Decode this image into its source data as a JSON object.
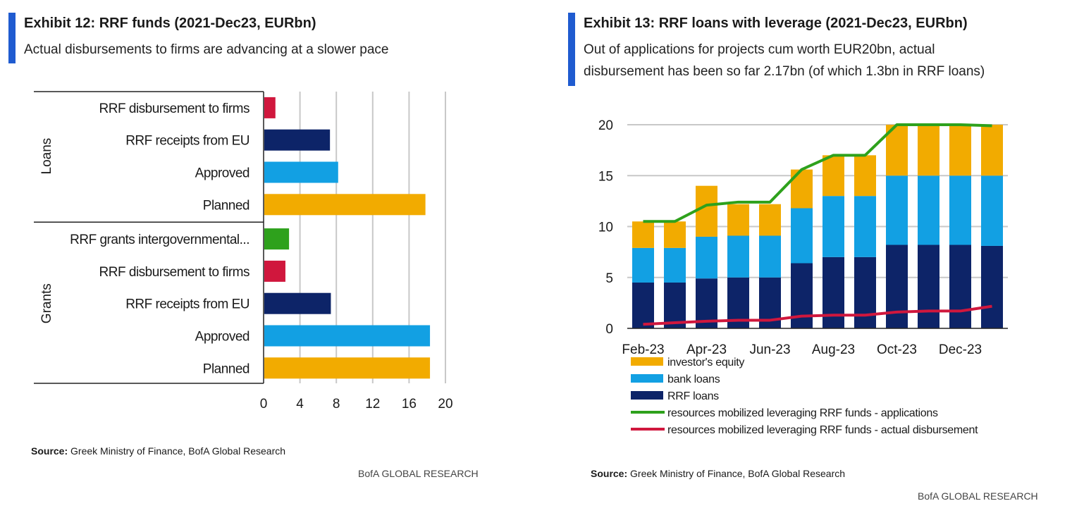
{
  "left": {
    "title": "Exhibit 12: RRF funds (2021-Dec23, EURbn)",
    "subtitle": "Actual disbursements to firms are advancing at a slower pace",
    "source_label": "Source:",
    "source_text": " Greek Ministry of Finance, BofA Global Research",
    "brand": "BofA GLOBAL RESEARCH"
  },
  "right": {
    "title": "Exhibit 13: RRF loans with leverage (2021-Dec23, EURbn)",
    "subtitle_line1": "Out of applications for projects cum worth EUR20bn, actual",
    "subtitle_line2": "disbursement has been so far 2.17bn (of which 1.3bn in RRF loans)",
    "source_label": "Source:",
    "source_text": " Greek Ministry of Finance, BofA Global Research",
    "brand": "BofA GLOBAL RESEARCH"
  },
  "colors": {
    "accent": "#1f5bd0",
    "red": "#d0173d",
    "navy": "#0d2468",
    "lightblue": "#12a0e3",
    "orange": "#f2ab00",
    "green": "#2ea11c",
    "grid": "#c8c8c8"
  },
  "chart_data": [
    {
      "type": "bar",
      "orientation": "horizontal",
      "title": "Exhibit 12: RRF funds (2021-Dec23, EURbn)",
      "xlim": [
        0,
        20
      ],
      "xticks": [
        "0",
        "4",
        "8",
        "12",
        "16",
        "20"
      ],
      "groups": [
        {
          "name": "Loans",
          "items": [
            {
              "label": "RRF disbursement to firms",
              "value": 1.3,
              "color": "red"
            },
            {
              "label": "RRF receipts from EU",
              "value": 7.3,
              "color": "navy"
            },
            {
              "label": "Approved",
              "value": 8.2,
              "color": "lightblue"
            },
            {
              "label": "Planned",
              "value": 17.8,
              "color": "orange"
            }
          ]
        },
        {
          "name": "Grants",
          "items": [
            {
              "label": "RRF grants intergovernmental...",
              "value": 2.8,
              "color": "green"
            },
            {
              "label": "RRF disbursement to firms",
              "value": 2.4,
              "color": "red"
            },
            {
              "label": "RRF receipts from EU",
              "value": 7.4,
              "color": "navy"
            },
            {
              "label": "Approved",
              "value": 18.3,
              "color": "lightblue"
            },
            {
              "label": "Planned",
              "value": 18.3,
              "color": "orange"
            }
          ]
        }
      ]
    },
    {
      "type": "stacked-bar-line",
      "title": "Exhibit 13: RRF loans with leverage (2021-Dec23, EURbn)",
      "ylim": [
        0,
        20
      ],
      "yticks": [
        "0",
        "5",
        "10",
        "15",
        "20"
      ],
      "categories": [
        "Feb-23",
        "Mar-23",
        "Apr-23",
        "May-23",
        "Jun-23",
        "Jul-23",
        "Aug-23",
        "Sep-23",
        "Oct-23",
        "Nov-23",
        "Dec-23",
        "Jan-24"
      ],
      "xtick_labels": [
        "Feb-23",
        "Apr-23",
        "Jun-23",
        "Aug-23",
        "Oct-23",
        "Dec-23"
      ],
      "xtick_indices": [
        0,
        2,
        4,
        6,
        8,
        10
      ],
      "stacks": [
        {
          "name": "RRF loans",
          "color": "navy",
          "values": [
            4.5,
            4.5,
            4.9,
            5.0,
            5.0,
            6.4,
            7.0,
            7.0,
            8.2,
            8.2,
            8.2,
            8.1
          ]
        },
        {
          "name": "bank loans",
          "color": "lightblue",
          "values": [
            3.4,
            3.4,
            4.1,
            4.1,
            4.1,
            5.4,
            6.0,
            6.0,
            6.8,
            6.8,
            6.8,
            6.9
          ]
        },
        {
          "name": "investor's equity",
          "color": "orange",
          "values": [
            2.6,
            2.6,
            5.0,
            3.1,
            3.1,
            3.8,
            4.0,
            4.0,
            5.0,
            5.0,
            5.0,
            5.0
          ]
        }
      ],
      "lines": [
        {
          "name": "resources mobilized leveraging RRF funds - applications",
          "color": "green",
          "values": [
            10.5,
            10.5,
            12.1,
            12.4,
            12.4,
            15.6,
            17.0,
            17.0,
            20.0,
            20.0,
            20.0,
            19.9
          ]
        },
        {
          "name": "resources mobilized leveraging RRF funds - actual disbursement",
          "color": "red",
          "values": [
            0.4,
            0.55,
            0.7,
            0.8,
            0.8,
            1.2,
            1.3,
            1.3,
            1.6,
            1.7,
            1.7,
            2.17
          ]
        }
      ],
      "legend": [
        {
          "label": "investor's equity",
          "kind": "box",
          "color": "orange"
        },
        {
          "label": "bank loans",
          "kind": "box",
          "color": "lightblue"
        },
        {
          "label": "RRF loans",
          "kind": "box",
          "color": "navy"
        },
        {
          "label": "resources mobilized leveraging RRF funds - applications",
          "kind": "line",
          "color": "green"
        },
        {
          "label": "resources mobilized leveraging RRF funds - actual disbursement",
          "kind": "line",
          "color": "red"
        }
      ]
    }
  ]
}
